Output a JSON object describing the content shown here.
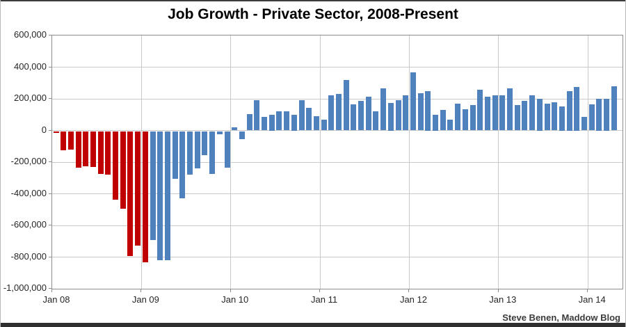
{
  "page": {
    "title": "Job Growth - Private Sector, 2008-Present",
    "credit": "Steve Benen, Maddow Blog"
  },
  "chart_data": {
    "type": "bar",
    "title": "Job Growth - Private Sector, 2008-Present",
    "xlabel": "",
    "ylabel": "",
    "ylim": [
      -1000000,
      600000
    ],
    "grid": true,
    "legend": false,
    "colors": {
      "red_bars": "#c00000",
      "blue_bars": "#4f81bd",
      "gridline": "#c9c9c9",
      "axis": "#8c8c8c"
    },
    "red_through_index": 12,
    "y_ticks": [
      {
        "value": 600000,
        "label": "600,000"
      },
      {
        "value": 400000,
        "label": "400,000"
      },
      {
        "value": 200000,
        "label": "200,000"
      },
      {
        "value": 0,
        "label": "0"
      },
      {
        "value": -200000,
        "label": "-200,000"
      },
      {
        "value": -400000,
        "label": "-400,000"
      },
      {
        "value": -600000,
        "label": "-600,000"
      },
      {
        "value": -800000,
        "label": "-800,000"
      },
      {
        "value": -1000000,
        "label": "-1,000,000"
      }
    ],
    "x_ticks": [
      {
        "index": 0,
        "label": "Jan 08"
      },
      {
        "index": 12,
        "label": "Jan 09"
      },
      {
        "index": 24,
        "label": "Jan 10"
      },
      {
        "index": 36,
        "label": "Jan 11"
      },
      {
        "index": 48,
        "label": "Jan 12"
      },
      {
        "index": 60,
        "label": "Jan 13"
      },
      {
        "index": 72,
        "label": "Jan 14"
      }
    ],
    "months": [
      "2008-01",
      "2008-02",
      "2008-03",
      "2008-04",
      "2008-05",
      "2008-06",
      "2008-07",
      "2008-08",
      "2008-09",
      "2008-10",
      "2008-11",
      "2008-12",
      "2009-01",
      "2009-02",
      "2009-03",
      "2009-04",
      "2009-05",
      "2009-06",
      "2009-07",
      "2009-08",
      "2009-09",
      "2009-10",
      "2009-11",
      "2009-12",
      "2010-01",
      "2010-02",
      "2010-03",
      "2010-04",
      "2010-05",
      "2010-06",
      "2010-07",
      "2010-08",
      "2010-09",
      "2010-10",
      "2010-11",
      "2010-12",
      "2011-01",
      "2011-02",
      "2011-03",
      "2011-04",
      "2011-05",
      "2011-06",
      "2011-07",
      "2011-08",
      "2011-09",
      "2011-10",
      "2011-11",
      "2011-12",
      "2012-01",
      "2012-02",
      "2012-03",
      "2012-04",
      "2012-05",
      "2012-06",
      "2012-07",
      "2012-08",
      "2012-09",
      "2012-10",
      "2012-11",
      "2012-12",
      "2013-01",
      "2013-02",
      "2013-03",
      "2013-04",
      "2013-05",
      "2013-06",
      "2013-07",
      "2013-08",
      "2013-09",
      "2013-10",
      "2013-11",
      "2013-12",
      "2014-01",
      "2014-02",
      "2014-03",
      "2014-04"
    ],
    "values": [
      -10000,
      -120000,
      -115000,
      -230000,
      -220000,
      -225000,
      -270000,
      -275000,
      -435000,
      -490000,
      -790000,
      -725000,
      -830000,
      -690000,
      -815000,
      -815000,
      -300000,
      -425000,
      -275000,
      -235000,
      -150000,
      -270000,
      -20000,
      -230000,
      20000,
      -50000,
      105000,
      190000,
      85000,
      100000,
      120000,
      120000,
      100000,
      190000,
      145000,
      90000,
      70000,
      220000,
      230000,
      320000,
      165000,
      185000,
      215000,
      120000,
      265000,
      175000,
      190000,
      220000,
      365000,
      235000,
      250000,
      100000,
      130000,
      70000,
      170000,
      135000,
      160000,
      255000,
      215000,
      220000,
      220000,
      265000,
      160000,
      185000,
      220000,
      200000,
      170000,
      180000,
      150000,
      250000,
      275000,
      85000,
      165000,
      200000,
      200000,
      280000
    ]
  }
}
